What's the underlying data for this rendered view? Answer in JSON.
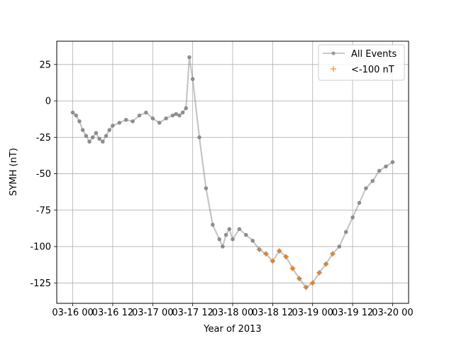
{
  "chart_data": {
    "type": "line",
    "title": "",
    "xlabel": "Year of 2013",
    "ylabel": "SYMH (nT)",
    "x_axis_type": "datetime",
    "xlim": [
      "2013-03-16 00:00",
      "2013-03-20 00:00"
    ],
    "ylim": [
      -139,
      41
    ],
    "x_ticks": [
      {
        "value": "2013-03-16 00:00",
        "label": "03-16 00"
      },
      {
        "value": "2013-03-16 12:00",
        "label": "03-16 12"
      },
      {
        "value": "2013-03-17 00:00",
        "label": "03-17 00"
      },
      {
        "value": "2013-03-17 12:00",
        "label": "03-17 12"
      },
      {
        "value": "2013-03-18 00:00",
        "label": "03-18 00"
      },
      {
        "value": "2013-03-18 12:00",
        "label": "03-18 12"
      },
      {
        "value": "2013-03-19 00:00",
        "label": "03-19 00"
      },
      {
        "value": "2013-03-19 12:00",
        "label": "03-19 12"
      },
      {
        "value": "2013-03-20 00:00",
        "label": "03-20 00"
      }
    ],
    "y_ticks": [
      25,
      0,
      -25,
      -50,
      -75,
      -100,
      -125
    ],
    "grid": true,
    "legend_position": "top-right",
    "series": [
      {
        "name": "All Events",
        "style": "line-dot",
        "color": "#808080",
        "x": [
          "2013-03-16 00:00",
          "2013-03-16 01:00",
          "2013-03-16 02:00",
          "2013-03-16 03:00",
          "2013-03-16 04:00",
          "2013-03-16 05:00",
          "2013-03-16 06:00",
          "2013-03-16 07:00",
          "2013-03-16 08:00",
          "2013-03-16 09:00",
          "2013-03-16 10:00",
          "2013-03-16 11:00",
          "2013-03-16 12:00",
          "2013-03-16 14:00",
          "2013-03-16 16:00",
          "2013-03-16 18:00",
          "2013-03-16 20:00",
          "2013-03-16 22:00",
          "2013-03-17 00:00",
          "2013-03-17 02:00",
          "2013-03-17 04:00",
          "2013-03-17 06:00",
          "2013-03-17 07:00",
          "2013-03-17 08:00",
          "2013-03-17 09:00",
          "2013-03-17 10:00",
          "2013-03-17 11:00",
          "2013-03-17 12:00",
          "2013-03-17 14:00",
          "2013-03-17 16:00",
          "2013-03-17 18:00",
          "2013-03-17 20:00",
          "2013-03-17 21:00",
          "2013-03-17 22:00",
          "2013-03-17 23:00",
          "2013-03-18 00:00",
          "2013-03-18 02:00",
          "2013-03-18 04:00",
          "2013-03-18 06:00",
          "2013-03-18 08:00",
          "2013-03-18 10:00",
          "2013-03-18 12:00",
          "2013-03-18 14:00",
          "2013-03-18 16:00",
          "2013-03-18 18:00",
          "2013-03-18 20:00",
          "2013-03-18 22:00",
          "2013-03-19 00:00",
          "2013-03-19 02:00",
          "2013-03-19 04:00",
          "2013-03-19 06:00",
          "2013-03-19 08:00",
          "2013-03-19 10:00",
          "2013-03-19 12:00",
          "2013-03-19 14:00",
          "2013-03-19 16:00",
          "2013-03-19 18:00",
          "2013-03-19 20:00",
          "2013-03-19 22:00",
          "2013-03-20 00:00"
        ],
        "y": [
          -8,
          -10,
          -14,
          -20,
          -24,
          -28,
          -25,
          -22,
          -26,
          -28,
          -24,
          -20,
          -17,
          -15,
          -13,
          -14,
          -10,
          -8,
          -12,
          -15,
          -12,
          -10,
          -9,
          -10,
          -8,
          -5,
          30,
          15,
          -25,
          -60,
          -85,
          -95,
          -100,
          -92,
          -88,
          -95,
          -88,
          -92,
          -96,
          -102,
          -105,
          -110,
          -103,
          -107,
          -115,
          -122,
          -128,
          -125,
          -118,
          -112,
          -105,
          -100,
          -90,
          -80,
          -70,
          -60,
          -55,
          -48,
          -45,
          -42
        ]
      },
      {
        "name": "<-100 nT",
        "style": "plus",
        "color": "#ff7f0e",
        "x": [],
        "y": []
      }
    ]
  }
}
